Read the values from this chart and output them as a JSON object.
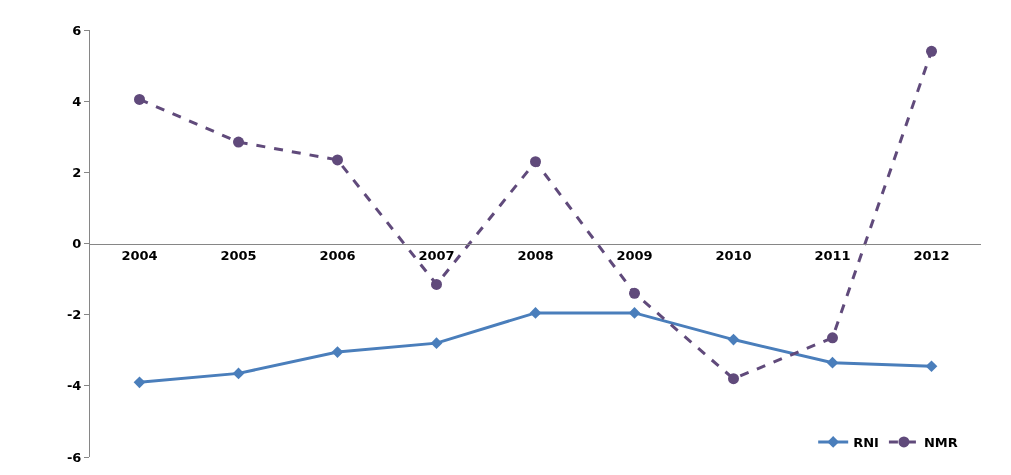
{
  "chart_data": {
    "type": "line",
    "categories": [
      "2004",
      "2005",
      "2006",
      "2007",
      "2008",
      "2009",
      "2010",
      "2011",
      "2012"
    ],
    "series": [
      {
        "name": "RNI",
        "color": "#4a7ebb",
        "marker": "diamond",
        "line_style": "solid",
        "values": [
          -3.9,
          -3.65,
          -3.05,
          -2.8,
          -1.95,
          -1.95,
          -2.7,
          -3.35,
          -3.45
        ]
      },
      {
        "name": "NMR",
        "color": "#604a7b",
        "marker": "circle",
        "line_style": "dashed",
        "values": [
          4.05,
          2.85,
          2.35,
          -1.15,
          2.3,
          -1.4,
          -3.8,
          -2.65,
          5.4
        ]
      }
    ],
    "ylim": [
      -6,
      6
    ],
    "yticks": [
      -6,
      -4,
      -2,
      0,
      2,
      4,
      6
    ],
    "legend": "bottom right"
  }
}
